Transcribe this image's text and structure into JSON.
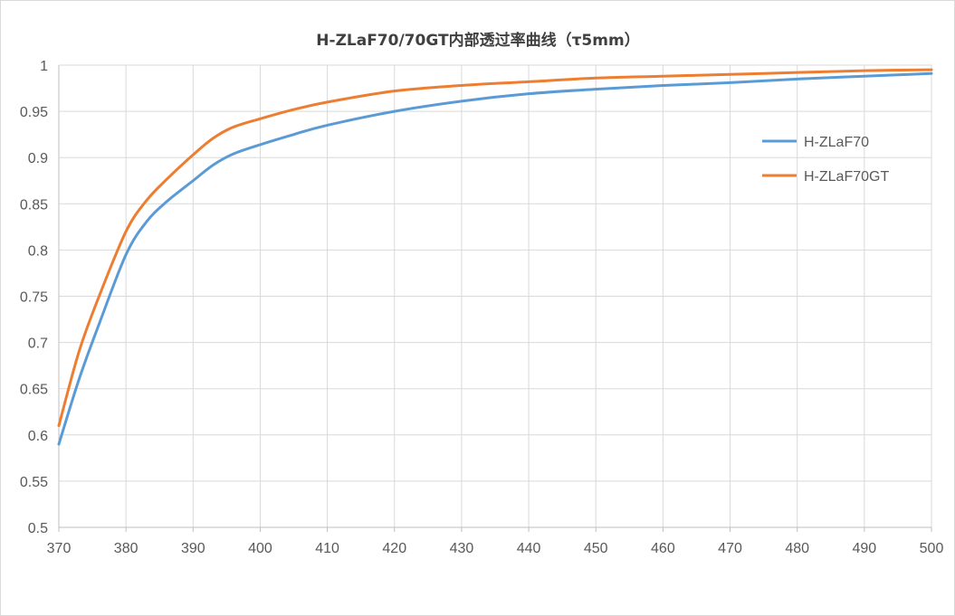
{
  "chart_data": {
    "type": "line",
    "title": "H-ZLaF70/70GT内部透过率曲线（τ5mm）",
    "xlabel": "",
    "ylabel": "",
    "xlim": [
      370,
      500
    ],
    "ylim": [
      0.5,
      1
    ],
    "x_ticks": [
      "370",
      "380",
      "390",
      "400",
      "410",
      "420",
      "430",
      "440",
      "450",
      "460",
      "470",
      "480",
      "490",
      "500"
    ],
    "y_ticks": [
      "0.5",
      "0.55",
      "0.6",
      "0.65",
      "0.7",
      "0.75",
      "0.8",
      "0.85",
      "0.9",
      "0.95",
      "1"
    ],
    "grid": true,
    "legend_position": "right",
    "series": [
      {
        "name": "H-ZLaF70",
        "color": "#5b9bd5",
        "x": [
          370,
          373,
          376,
          380,
          383,
          386,
          390,
          393,
          396,
          400,
          405,
          410,
          420,
          430,
          440,
          450,
          460,
          470,
          480,
          490,
          500
        ],
        "y": [
          0.59,
          0.66,
          0.72,
          0.795,
          0.83,
          0.852,
          0.875,
          0.892,
          0.904,
          0.914,
          0.925,
          0.935,
          0.95,
          0.961,
          0.969,
          0.974,
          0.978,
          0.981,
          0.985,
          0.988,
          0.991
        ]
      },
      {
        "name": "H-ZLaF70GT",
        "color": "#ed7d31",
        "x": [
          370,
          373,
          376,
          380,
          383,
          386,
          390,
          393,
          396,
          400,
          405,
          410,
          420,
          430,
          440,
          450,
          460,
          470,
          480,
          490,
          500
        ],
        "y": [
          0.61,
          0.69,
          0.75,
          0.82,
          0.853,
          0.876,
          0.903,
          0.921,
          0.933,
          0.942,
          0.952,
          0.96,
          0.972,
          0.978,
          0.982,
          0.986,
          0.988,
          0.99,
          0.992,
          0.994,
          0.995
        ]
      }
    ]
  }
}
